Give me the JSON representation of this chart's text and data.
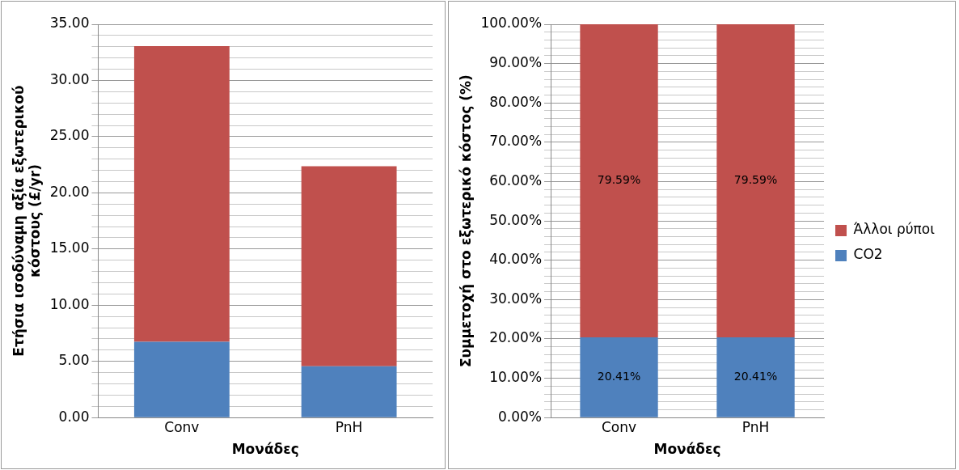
{
  "chart_data": [
    {
      "type": "bar",
      "stacked": true,
      "xlabel": "Μονάδες",
      "ylabel": "Ετήσια ισοδύναμη αξία εξωτερικού κόστους (£/yr)",
      "categories": [
        "Conv",
        "PnH"
      ],
      "series": [
        {
          "color": "#4f81bd",
          "values": [
            6.75,
            4.56
          ]
        },
        {
          "color": "#c0504d",
          "values": [
            26.31,
            17.8
          ]
        }
      ],
      "ylim": [
        0,
        35
      ],
      "yticks": [
        {
          "value": 0,
          "label": "0.00"
        },
        {
          "value": 1,
          "label": null
        },
        {
          "value": 2,
          "label": null
        },
        {
          "value": 3,
          "label": null
        },
        {
          "value": 4,
          "label": null
        },
        {
          "value": 5,
          "label": "5.00"
        },
        {
          "value": 6,
          "label": null
        },
        {
          "value": 7,
          "label": null
        },
        {
          "value": 8,
          "label": null
        },
        {
          "value": 9,
          "label": null
        },
        {
          "value": 10,
          "label": "10.00"
        },
        {
          "value": 11,
          "label": null
        },
        {
          "value": 12,
          "label": null
        },
        {
          "value": 13,
          "label": null
        },
        {
          "value": 14,
          "label": null
        },
        {
          "value": 15,
          "label": "15.00"
        },
        {
          "value": 16,
          "label": null
        },
        {
          "value": 17,
          "label": null
        },
        {
          "value": 18,
          "label": null
        },
        {
          "value": 19,
          "label": null
        },
        {
          "value": 20,
          "label": "20.00"
        },
        {
          "value": 21,
          "label": null
        },
        {
          "value": 22,
          "label": null
        },
        {
          "value": 23,
          "label": null
        },
        {
          "value": 24,
          "label": null
        },
        {
          "value": 25,
          "label": "25.00"
        },
        {
          "value": 26,
          "label": null
        },
        {
          "value": 27,
          "label": null
        },
        {
          "value": 28,
          "label": null
        },
        {
          "value": 29,
          "label": null
        },
        {
          "value": 30,
          "label": "30.00"
        },
        {
          "value": 31,
          "label": null
        },
        {
          "value": 32,
          "label": null
        },
        {
          "value": 33,
          "label": null
        },
        {
          "value": 34,
          "label": null
        },
        {
          "value": 35,
          "label": "35.00"
        }
      ],
      "grid": "y",
      "legend": false
    },
    {
      "type": "bar",
      "stacked": true,
      "xlabel": "Μονάδες",
      "ylabel": "Συμμετοχή στο εξωτερικό κόστος (%)",
      "categories": [
        "Conv",
        "PnH"
      ],
      "series": [
        {
          "name": "CO2",
          "color": "#4f81bd",
          "values": [
            20.41,
            20.41
          ],
          "value_labels": [
            "20.41%",
            "20.41%"
          ]
        },
        {
          "name": "Άλλοι ρύποι",
          "color": "#c0504d",
          "values": [
            79.59,
            79.59
          ],
          "value_labels": [
            "79.59%",
            "79.59%"
          ]
        }
      ],
      "ylim": [
        0,
        100
      ],
      "yticks": [
        {
          "value": 0,
          "label": "0.00%"
        },
        {
          "value": 2,
          "label": null
        },
        {
          "value": 4,
          "label": null
        },
        {
          "value": 6,
          "label": null
        },
        {
          "value": 8,
          "label": null
        },
        {
          "value": 10,
          "label": "10.00%"
        },
        {
          "value": 12,
          "label": null
        },
        {
          "value": 14,
          "label": null
        },
        {
          "value": 16,
          "label": null
        },
        {
          "value": 18,
          "label": null
        },
        {
          "value": 20,
          "label": "20.00%"
        },
        {
          "value": 22,
          "label": null
        },
        {
          "value": 24,
          "label": null
        },
        {
          "value": 26,
          "label": null
        },
        {
          "value": 28,
          "label": null
        },
        {
          "value": 30,
          "label": "30.00%"
        },
        {
          "value": 32,
          "label": null
        },
        {
          "value": 34,
          "label": null
        },
        {
          "value": 36,
          "label": null
        },
        {
          "value": 38,
          "label": null
        },
        {
          "value": 40,
          "label": "40.00%"
        },
        {
          "value": 42,
          "label": null
        },
        {
          "value": 44,
          "label": null
        },
        {
          "value": 46,
          "label": null
        },
        {
          "value": 48,
          "label": null
        },
        {
          "value": 50,
          "label": "50.00%"
        },
        {
          "value": 52,
          "label": null
        },
        {
          "value": 54,
          "label": null
        },
        {
          "value": 56,
          "label": null
        },
        {
          "value": 58,
          "label": null
        },
        {
          "value": 60,
          "label": "60.00%"
        },
        {
          "value": 62,
          "label": null
        },
        {
          "value": 64,
          "label": null
        },
        {
          "value": 66,
          "label": null
        },
        {
          "value": 68,
          "label": null
        },
        {
          "value": 70,
          "label": "70.00%"
        },
        {
          "value": 72,
          "label": null
        },
        {
          "value": 74,
          "label": null
        },
        {
          "value": 76,
          "label": null
        },
        {
          "value": 78,
          "label": null
        },
        {
          "value": 80,
          "label": "80.00%"
        },
        {
          "value": 82,
          "label": null
        },
        {
          "value": 84,
          "label": null
        },
        {
          "value": 86,
          "label": null
        },
        {
          "value": 88,
          "label": null
        },
        {
          "value": 90,
          "label": "90.00%"
        },
        {
          "value": 92,
          "label": null
        },
        {
          "value": 94,
          "label": null
        },
        {
          "value": 96,
          "label": null
        },
        {
          "value": 98,
          "label": null
        },
        {
          "value": 100,
          "label": "100.00%"
        }
      ],
      "grid": "y",
      "legend": "right"
    }
  ]
}
